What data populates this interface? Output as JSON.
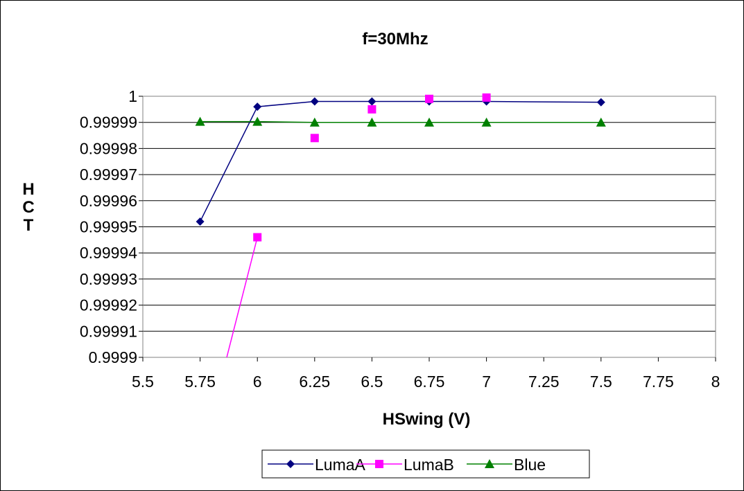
{
  "chart_data": {
    "type": "line",
    "title": "f=30Mhz",
    "xlabel": "HSwing (V)",
    "ylabel": "HCT",
    "xlim": [
      5.5,
      8
    ],
    "ylim": [
      0.9999,
      1
    ],
    "x_ticks": [
      "5.5",
      "5.75",
      "6",
      "6.25",
      "6.5",
      "6.75",
      "7",
      "7.25",
      "7.5",
      "7.75",
      "8"
    ],
    "y_ticks": [
      "0.9999",
      "0.99991",
      "0.99992",
      "0.99993",
      "0.99994",
      "0.99995",
      "0.99996",
      "0.99997",
      "0.99998",
      "0.99999",
      "1"
    ],
    "grid": "horizontal",
    "legend_position": "bottom",
    "series": [
      {
        "name": "LumaA",
        "color": "#000080",
        "marker": "diamond",
        "x": [
          5.75,
          6,
          6.25,
          6.5,
          6.75,
          7,
          7.5
        ],
        "y": [
          0.999952,
          0.999996,
          0.999998,
          0.999998,
          0.999998,
          0.999998,
          0.9999977
        ]
      },
      {
        "name": "LumaB",
        "color": "#ff00ff",
        "marker": "square",
        "x": [
          5.75,
          6,
          6.25,
          6.5,
          6.75,
          7
        ],
        "y": [
          0.99986,
          0.999946,
          0.999984,
          0.999995,
          0.999999,
          0.9999995
        ],
        "segments": [
          [
            0,
            1
          ]
        ]
      },
      {
        "name": "Blue",
        "color": "#008000",
        "marker": "triangle",
        "x": [
          5.75,
          6,
          6.25,
          6.5,
          6.75,
          7,
          7.5
        ],
        "y": [
          0.9999903,
          0.9999903,
          0.99999,
          0.99999,
          0.99999,
          0.99999,
          0.99999
        ]
      }
    ]
  }
}
